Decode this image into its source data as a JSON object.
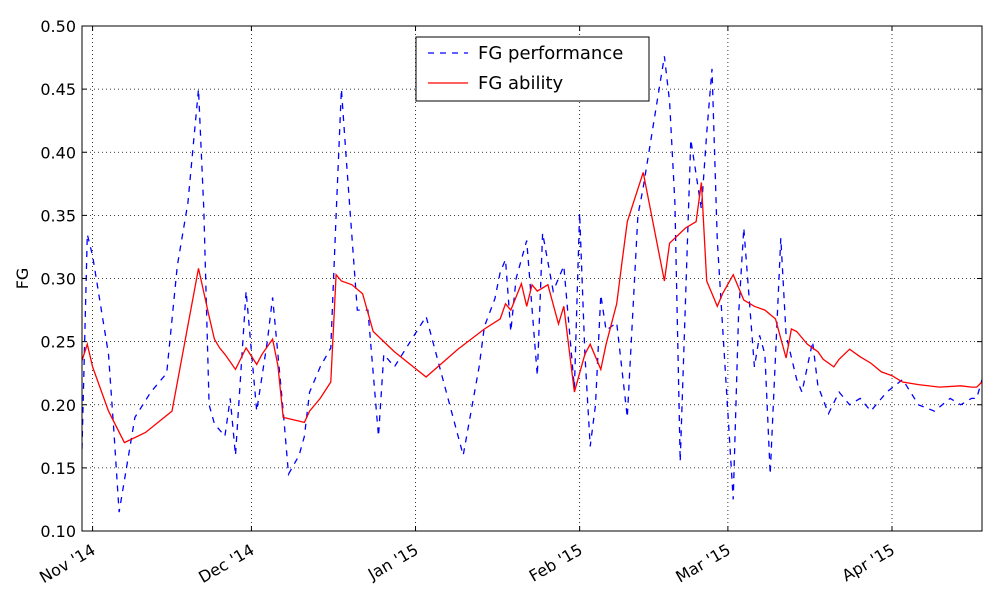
{
  "chart_data": {
    "type": "line",
    "xlabel": "",
    "ylabel": "FG",
    "ylim": [
      0.1,
      0.5
    ],
    "xlim": [
      "2014-10-30",
      "2015-04-18"
    ],
    "grid": true,
    "legend_position": "top-center",
    "y_ticks": [
      "0.10",
      "0.15",
      "0.20",
      "0.25",
      "0.30",
      "0.35",
      "0.40",
      "0.45",
      "0.50"
    ],
    "x_ticks": [
      {
        "date": "2014-11-01",
        "label": "Nov '14"
      },
      {
        "date": "2014-12-01",
        "label": "Dec '14"
      },
      {
        "date": "2015-01-01",
        "label": "Jan '15"
      },
      {
        "date": "2015-02-01",
        "label": "Feb '15"
      },
      {
        "date": "2015-03-01",
        "label": "Mar '15"
      },
      {
        "date": "2015-04-01",
        "label": "Apr '15"
      }
    ],
    "series": [
      {
        "name": "FG performance",
        "color": "#0000ff",
        "style": "dashed",
        "x": [
          "2014-10-30",
          "2014-10-31",
          "2014-11-01",
          "2014-11-04",
          "2014-11-05",
          "2014-11-06",
          "2014-11-09",
          "2014-11-12",
          "2014-11-15",
          "2014-11-17",
          "2014-11-19",
          "2014-11-21",
          "2014-11-22",
          "2014-11-23",
          "2014-11-24",
          "2014-11-26",
          "2014-11-27",
          "2014-11-28",
          "2014-11-30",
          "2014-12-02",
          "2014-12-04",
          "2014-12-05",
          "2014-12-07",
          "2014-12-08",
          "2014-12-10",
          "2014-12-11",
          "2014-12-12",
          "2014-12-14",
          "2014-12-16",
          "2014-12-17",
          "2014-12-18",
          "2014-12-19",
          "2014-12-21",
          "2014-12-23",
          "2014-12-25",
          "2014-12-26",
          "2014-12-28",
          "2015-01-03",
          "2015-01-10",
          "2015-01-13",
          "2015-01-14",
          "2015-01-16",
          "2015-01-17",
          "2015-01-18",
          "2015-01-19",
          "2015-01-20",
          "2015-01-22",
          "2015-01-24",
          "2015-01-25",
          "2015-01-27",
          "2015-01-28",
          "2015-01-29",
          "2015-01-31",
          "2015-02-01",
          "2015-02-02",
          "2015-02-03",
          "2015-02-04",
          "2015-02-05",
          "2015-02-06",
          "2015-02-08",
          "2015-02-10",
          "2015-02-12",
          "2015-02-13",
          "2015-02-17",
          "2015-02-18",
          "2015-02-19",
          "2015-02-20",
          "2015-02-22",
          "2015-02-24",
          "2015-02-25",
          "2015-02-26",
          "2015-02-27",
          "2015-03-02",
          "2015-03-03",
          "2015-03-04",
          "2015-03-06",
          "2015-03-07",
          "2015-03-08",
          "2015-03-09",
          "2015-03-11",
          "2015-03-12",
          "2015-03-14",
          "2015-03-15",
          "2015-03-17",
          "2015-03-18",
          "2015-03-20",
          "2015-03-22",
          "2015-03-24",
          "2015-03-26",
          "2015-03-28",
          "2015-03-31",
          "2015-04-03",
          "2015-04-06",
          "2015-04-09",
          "2015-04-12",
          "2015-04-14",
          "2015-04-16",
          "2015-04-17",
          "2015-04-18"
        ],
        "values": [
          0.165,
          0.335,
          0.318,
          0.24,
          0.18,
          0.115,
          0.19,
          0.21,
          0.225,
          0.31,
          0.36,
          0.45,
          0.355,
          0.2,
          0.185,
          0.175,
          0.205,
          0.16,
          0.29,
          0.195,
          0.25,
          0.285,
          0.195,
          0.145,
          0.16,
          0.175,
          0.21,
          0.23,
          0.245,
          0.35,
          0.45,
          0.39,
          0.275,
          0.275,
          0.175,
          0.24,
          0.23,
          0.27,
          0.16,
          0.23,
          0.262,
          0.284,
          0.305,
          0.315,
          0.258,
          0.3,
          0.33,
          0.223,
          0.336,
          0.29,
          0.3,
          0.31,
          0.213,
          0.352,
          0.24,
          0.167,
          0.2,
          0.287,
          0.259,
          0.265,
          0.19,
          0.35,
          0.372,
          0.476,
          0.44,
          0.36,
          0.155,
          0.41,
          0.355,
          0.415,
          0.466,
          0.33,
          0.125,
          0.27,
          0.34,
          0.23,
          0.255,
          0.24,
          0.145,
          0.332,
          0.255,
          0.22,
          0.21,
          0.25,
          0.215,
          0.193,
          0.21,
          0.2,
          0.205,
          0.195,
          0.21,
          0.22,
          0.2,
          0.195,
          0.205,
          0.2,
          0.205,
          0.205,
          0.22
        ]
      },
      {
        "name": "FG ability",
        "color": "#ff0000",
        "style": "solid",
        "x": [
          "2014-10-30",
          "2014-10-31",
          "2014-11-01",
          "2014-11-04",
          "2014-11-07",
          "2014-11-11",
          "2014-11-16",
          "2014-11-21",
          "2014-11-23",
          "2014-11-24",
          "2014-11-25",
          "2014-11-26",
          "2014-11-28",
          "2014-11-30",
          "2014-12-02",
          "2014-12-03",
          "2014-12-05",
          "2014-12-06",
          "2014-12-07",
          "2014-12-09",
          "2014-12-11",
          "2014-12-12",
          "2014-12-14",
          "2014-12-16",
          "2014-12-17",
          "2014-12-18",
          "2014-12-20",
          "2014-12-22",
          "2014-12-24",
          "2014-12-28",
          "2015-01-03",
          "2015-01-09",
          "2015-01-14",
          "2015-01-17",
          "2015-01-18",
          "2015-01-19",
          "2015-01-21",
          "2015-01-22",
          "2015-01-23",
          "2015-01-24",
          "2015-01-26",
          "2015-01-28",
          "2015-01-29",
          "2015-01-31",
          "2015-02-01",
          "2015-02-02",
          "2015-02-03",
          "2015-02-05",
          "2015-02-06",
          "2015-02-08",
          "2015-02-09",
          "2015-02-10",
          "2015-02-13",
          "2015-02-17",
          "2015-02-18",
          "2015-02-21",
          "2015-02-23",
          "2015-02-24",
          "2015-02-25",
          "2015-02-27",
          "2015-02-28",
          "2015-03-02",
          "2015-03-04",
          "2015-03-06",
          "2015-03-08",
          "2015-03-10",
          "2015-03-12",
          "2015-03-13",
          "2015-03-14",
          "2015-03-16",
          "2015-03-18",
          "2015-03-19",
          "2015-03-21",
          "2015-03-22",
          "2015-03-24",
          "2015-03-26",
          "2015-03-28",
          "2015-03-30",
          "2015-04-01",
          "2015-04-03",
          "2015-04-06",
          "2015-04-10",
          "2015-04-14",
          "2015-04-16",
          "2015-04-17",
          "2015-04-18"
        ],
        "values": [
          0.235,
          0.248,
          0.23,
          0.195,
          0.17,
          0.178,
          0.195,
          0.308,
          0.27,
          0.252,
          0.245,
          0.24,
          0.228,
          0.245,
          0.232,
          0.24,
          0.252,
          0.231,
          0.19,
          0.188,
          0.186,
          0.195,
          0.205,
          0.218,
          0.303,
          0.298,
          0.295,
          0.288,
          0.258,
          0.242,
          0.222,
          0.244,
          0.26,
          0.268,
          0.28,
          0.275,
          0.296,
          0.278,
          0.295,
          0.29,
          0.295,
          0.264,
          0.278,
          0.21,
          0.225,
          0.24,
          0.248,
          0.228,
          0.248,
          0.28,
          0.313,
          0.345,
          0.384,
          0.298,
          0.328,
          0.34,
          0.345,
          0.376,
          0.298,
          0.278,
          0.288,
          0.303,
          0.283,
          0.278,
          0.275,
          0.268,
          0.237,
          0.26,
          0.258,
          0.248,
          0.242,
          0.236,
          0.23,
          0.236,
          0.244,
          0.238,
          0.233,
          0.226,
          0.223,
          0.218,
          0.216,
          0.214,
          0.215,
          0.214,
          0.214,
          0.218
        ]
      }
    ]
  }
}
